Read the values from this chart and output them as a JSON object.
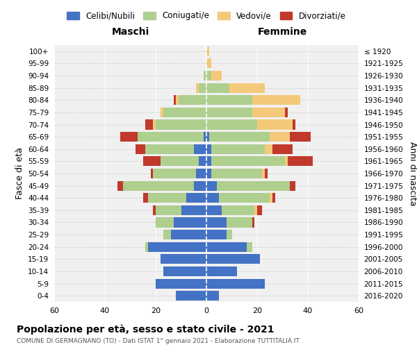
{
  "age_groups": [
    "0-4",
    "5-9",
    "10-14",
    "15-19",
    "20-24",
    "25-29",
    "30-34",
    "35-39",
    "40-44",
    "45-49",
    "50-54",
    "55-59",
    "60-64",
    "65-69",
    "70-74",
    "75-79",
    "80-84",
    "85-89",
    "90-94",
    "95-99",
    "100+"
  ],
  "birth_years": [
    "2016-2020",
    "2011-2015",
    "2006-2010",
    "2001-2005",
    "1996-2000",
    "1991-1995",
    "1986-1990",
    "1981-1985",
    "1976-1980",
    "1971-1975",
    "1966-1970",
    "1961-1965",
    "1956-1960",
    "1951-1955",
    "1946-1950",
    "1941-1945",
    "1936-1940",
    "1931-1935",
    "1926-1930",
    "1921-1925",
    "≤ 1920"
  ],
  "male": {
    "celibi": [
      12,
      20,
      17,
      18,
      23,
      14,
      13,
      10,
      8,
      5,
      4,
      3,
      5,
      1,
      0,
      0,
      0,
      0,
      0,
      0,
      0
    ],
    "coniugati": [
      0,
      0,
      0,
      0,
      1,
      3,
      7,
      10,
      15,
      28,
      17,
      15,
      19,
      26,
      20,
      17,
      11,
      3,
      1,
      0,
      0
    ],
    "vedovi": [
      0,
      0,
      0,
      0,
      0,
      0,
      0,
      0,
      0,
      0,
      0,
      0,
      0,
      0,
      1,
      1,
      1,
      1,
      0,
      0,
      0
    ],
    "divorziati": [
      0,
      0,
      0,
      0,
      0,
      0,
      0,
      1,
      2,
      2,
      1,
      7,
      4,
      7,
      3,
      0,
      1,
      0,
      0,
      0,
      0
    ]
  },
  "female": {
    "nubili": [
      5,
      23,
      12,
      21,
      16,
      8,
      8,
      6,
      5,
      4,
      2,
      2,
      2,
      1,
      0,
      0,
      0,
      0,
      0,
      0,
      0
    ],
    "coniugate": [
      0,
      0,
      0,
      0,
      2,
      2,
      10,
      13,
      20,
      29,
      20,
      29,
      21,
      24,
      20,
      18,
      18,
      9,
      2,
      0,
      0
    ],
    "vedove": [
      0,
      0,
      0,
      0,
      0,
      0,
      0,
      1,
      1,
      0,
      1,
      1,
      3,
      8,
      14,
      13,
      19,
      14,
      4,
      2,
      1
    ],
    "divorziate": [
      0,
      0,
      0,
      0,
      0,
      0,
      1,
      2,
      1,
      2,
      1,
      10,
      8,
      8,
      1,
      1,
      0,
      0,
      0,
      0,
      0
    ]
  },
  "colors": {
    "celibi": "#4472C4",
    "coniugati": "#AECF8E",
    "vedovi": "#F5C97A",
    "divorziati": "#C0392B"
  },
  "xlim": 60,
  "title": "Popolazione per età, sesso e stato civile - 2021",
  "subtitle": "COMUNE DI GERMAGNANO (TO) - Dati ISTAT 1° gennaio 2021 - Elaborazione TUTTITALIA.IT",
  "ylabel_left": "Fasce di età",
  "ylabel_right": "Anni di nascita",
  "legend_labels": [
    "Celibi/Nubili",
    "Coniugati/e",
    "Vedovi/e",
    "Divorziati/e"
  ],
  "maschi_label": "Maschi",
  "femmine_label": "Femmine",
  "background_color": "#ffffff",
  "grid_color": "#cccccc"
}
